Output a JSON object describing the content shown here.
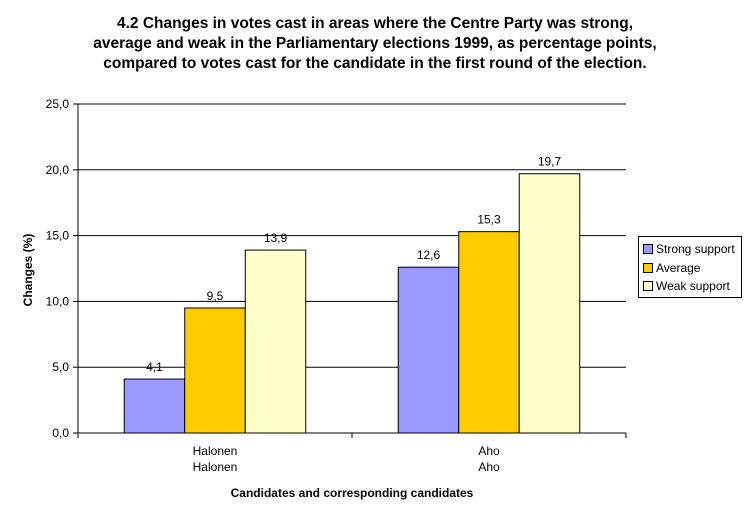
{
  "chart_data": {
    "type": "bar",
    "title_lines": [
      "4.2 Changes in votes cast in areas where the Centre Party was strong,",
      "average and weak in the Parliamentary elections 1999, as percentage points,",
      "compared to votes cast for the candidate in the first round of the election."
    ],
    "categories": [
      {
        "line1": "Halonen",
        "line2": "Halonen"
      },
      {
        "line1": "Aho",
        "line2": "Aho"
      }
    ],
    "series": [
      {
        "name": "Strong support",
        "color": "#9999ff",
        "values": [
          4.1,
          12.6
        ],
        "labels": [
          "4,1",
          "12,6"
        ]
      },
      {
        "name": "Average",
        "color": "#ffcc00",
        "values": [
          9.5,
          15.3
        ],
        "labels": [
          "9,5",
          "15,3"
        ]
      },
      {
        "name": "Weak support",
        "color": "#ffffcc",
        "values": [
          13.9,
          19.7
        ],
        "labels": [
          "13,9",
          "19,7"
        ]
      }
    ],
    "xlabel": "Candidates and corresponding candidates",
    "ylabel": "Changes (%)",
    "ylim": [
      0,
      25
    ],
    "yticks": [
      0,
      5,
      10,
      15,
      20,
      25
    ],
    "ytick_labels": [
      "0,0",
      "5,0",
      "10,0",
      "15,0",
      "20,0",
      "25,0"
    ],
    "grid": true,
    "legend_position": "right"
  }
}
